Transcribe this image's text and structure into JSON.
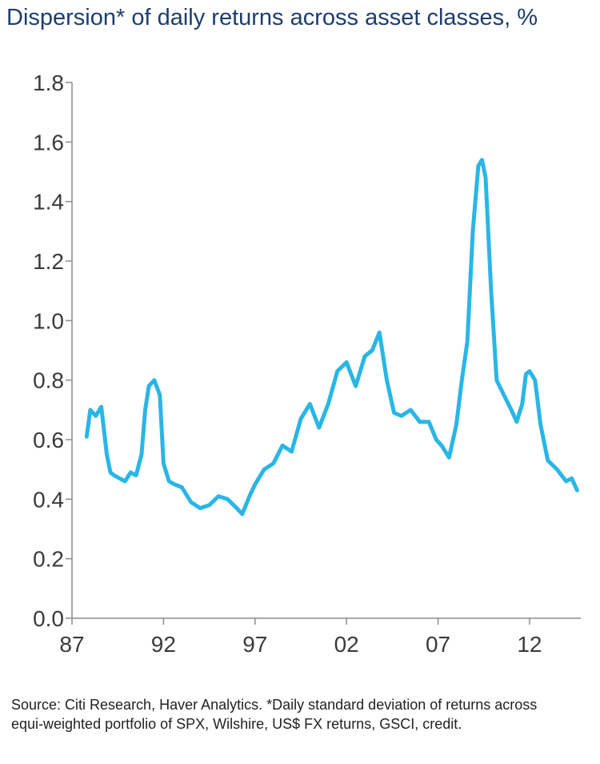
{
  "chart_data": {
    "type": "line",
    "title": "Dispersion* of daily returns across asset classes, %",
    "ylim": [
      0,
      1.8
    ],
    "yticks": [
      0.0,
      0.2,
      0.4,
      0.6,
      0.8,
      1.0,
      1.2,
      1.4,
      1.6,
      1.8
    ],
    "ytick_labels": [
      "0.0",
      "0.2",
      "0.4",
      "0.6",
      "0.8",
      "1.0",
      "1.2",
      "1.4",
      "1.6",
      "1.8"
    ],
    "xlim": [
      1987,
      2014.8
    ],
    "xticks": [
      1987,
      1992,
      1997,
      2002,
      2007,
      2012
    ],
    "xtick_labels": [
      "87",
      "92",
      "97",
      "02",
      "07",
      "12"
    ],
    "grid": false,
    "line_color": "#29b6e6",
    "series": [
      {
        "x": [
          1987.8,
          1988.0,
          1988.3,
          1988.6,
          1988.9,
          1989.1,
          1989.3,
          1989.6,
          1989.9,
          1990.2,
          1990.5,
          1990.8,
          1991.0,
          1991.2,
          1991.5,
          1991.8,
          1992.0,
          1992.3,
          1992.6,
          1993.0,
          1993.5,
          1994.0,
          1994.5,
          1995.0,
          1995.5,
          1996.0,
          1996.3,
          1996.7,
          1997.0,
          1997.5,
          1998.0,
          1998.5,
          1999.0,
          1999.5,
          2000.0,
          2000.5,
          2001.0,
          2001.5,
          2002.0,
          2002.5,
          2003.0,
          2003.4,
          2003.8,
          2004.2,
          2004.6,
          2005.0,
          2005.5,
          2006.0,
          2006.5,
          2006.9,
          2007.2,
          2007.6,
          2008.0,
          2008.3,
          2008.6,
          2008.9,
          2009.2,
          2009.4,
          2009.6,
          2009.9,
          2010.2,
          2010.6,
          2011.0,
          2011.3,
          2011.6,
          2011.8,
          2012.0,
          2012.3,
          2012.6,
          2013.0,
          2013.5,
          2014.0,
          2014.3,
          2014.6
        ],
        "values": [
          0.61,
          0.7,
          0.68,
          0.71,
          0.55,
          0.49,
          0.48,
          0.47,
          0.46,
          0.49,
          0.48,
          0.55,
          0.7,
          0.78,
          0.8,
          0.75,
          0.52,
          0.46,
          0.45,
          0.44,
          0.39,
          0.37,
          0.38,
          0.41,
          0.4,
          0.37,
          0.35,
          0.41,
          0.45,
          0.5,
          0.52,
          0.58,
          0.56,
          0.67,
          0.72,
          0.64,
          0.72,
          0.83,
          0.86,
          0.78,
          0.88,
          0.9,
          0.96,
          0.8,
          0.69,
          0.68,
          0.7,
          0.66,
          0.66,
          0.6,
          0.58,
          0.54,
          0.65,
          0.8,
          0.93,
          1.3,
          1.52,
          1.54,
          1.48,
          1.1,
          0.8,
          0.75,
          0.7,
          0.66,
          0.72,
          0.82,
          0.83,
          0.8,
          0.65,
          0.53,
          0.5,
          0.46,
          0.47,
          0.43
        ]
      }
    ]
  },
  "source_note": "Source: Citi Research, Haver Analytics. *Daily standard deviation of returns across equi-weighted portfolio of SPX, Wilshire, US$ FX returns, GSCI, credit."
}
